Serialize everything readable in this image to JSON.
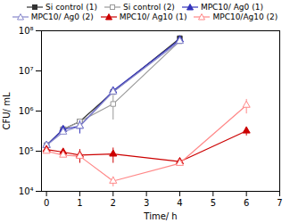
{
  "chart_data": {
    "type": "line",
    "title": "",
    "xlabel": "Time/ h",
    "ylabel": "CFU/ mL",
    "log": "y",
    "grid": false,
    "legend": "upper center",
    "xlim": [
      -0.15,
      7
    ],
    "ylim": [
      10000,
      100000000
    ],
    "xticks": [
      0,
      1,
      2,
      3,
      4,
      5,
      6,
      7
    ],
    "yticks": [
      {
        "value": 10000,
        "label": "10⁴"
      },
      {
        "value": 100000,
        "label": "10⁵"
      },
      {
        "value": 1000000,
        "label": "10⁶"
      },
      {
        "value": 10000000,
        "label": "10⁷"
      },
      {
        "value": 100000000,
        "label": "10⁸"
      }
    ],
    "series": [
      {
        "name": "Si control (1)",
        "color": "#333333",
        "marker": "square",
        "line_style": "solid",
        "x": [
          0,
          0.5,
          1,
          2,
          4
        ],
        "values": [
          140000.0,
          350000.0,
          550000.0,
          3000000.0,
          65000000.0
        ],
        "yerr": [
          0,
          0,
          0,
          0,
          0
        ]
      },
      {
        "name": "Si control (2)",
        "color": "#999999",
        "marker": "square-open",
        "line_style": "solid",
        "x": [
          0,
          0.5,
          1,
          2,
          4
        ],
        "values": [
          140000.0,
          350000.0,
          550000.0,
          1500000.0,
          55000000.0
        ],
        "yerr": [
          0,
          0,
          0,
          900000.0,
          0
        ]
      },
      {
        "name": "MPC10/ Ag0 (1)",
        "color": "#3333bb",
        "marker": "triangle",
        "line_style": "solid",
        "x": [
          0,
          0.5,
          1,
          2,
          4
        ],
        "values": [
          140000.0,
          350000.0,
          420000.0,
          3200000.0,
          60000000.0
        ],
        "yerr": [
          0,
          0,
          150000.0,
          0,
          0
        ]
      },
      {
        "name": "MPC10/ Ag0 (2)",
        "color": "#8888cc",
        "marker": "triangle-open",
        "line_style": "solid",
        "x": [
          0,
          0.5,
          1,
          2,
          4
        ],
        "values": [
          140000.0,
          300000.0,
          420000.0,
          3000000.0,
          55000000.0
        ],
        "yerr": [
          0,
          0,
          0,
          0,
          0
        ]
      },
      {
        "name": "MPC10/ Ag10 (1)",
        "color": "#cc0000",
        "marker": "triangle",
        "line_style": "solid",
        "x": [
          0,
          0.5,
          1,
          2,
          4,
          6
        ],
        "values": [
          110000.0,
          95000.0,
          80000.0,
          85000.0,
          55000.0,
          320000.0
        ],
        "yerr": [
          0,
          0,
          30000.0,
          35000.0,
          0,
          80000.0
        ]
      },
      {
        "name": "MPC10/Ag10 (2)",
        "color": "#ff8888",
        "marker": "triangle-open",
        "line_style": "solid",
        "x": [
          0,
          0.5,
          1,
          2,
          4,
          6
        ],
        "values": [
          100000.0,
          80000.0,
          75000.0,
          18000.0,
          50000.0,
          1400000.0
        ],
        "yerr": [
          0,
          0,
          0,
          5000.0,
          0,
          550000.0
        ]
      }
    ]
  }
}
